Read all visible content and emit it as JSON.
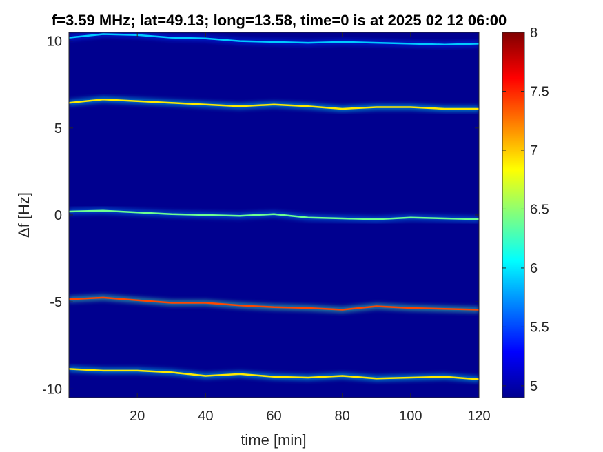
{
  "chart_data": {
    "type": "heatmap",
    "title": "f=3.59 MHz;  lat=49.13; long=13.58, time=0 is at 2025 02 12 06:00",
    "xlabel": "time [min]",
    "ylabel": "Δf [Hz]",
    "xlim": [
      0,
      120
    ],
    "ylim": [
      -10.5,
      10.5
    ],
    "xticks": [
      20,
      40,
      60,
      80,
      100,
      120
    ],
    "xtick_labels": [
      "20",
      "40",
      "60",
      "80",
      "100",
      "120"
    ],
    "yticks": [
      -10,
      -5,
      0,
      5,
      10
    ],
    "ytick_labels": [
      "-10",
      "-5",
      "0",
      "5",
      "10"
    ],
    "colorbar": {
      "colormap": "jet",
      "range": [
        4.9,
        8.0
      ],
      "ticks": [
        5,
        5.5,
        6,
        6.5,
        7,
        7.5,
        8
      ],
      "tick_labels": [
        "5",
        "5.5",
        "6",
        "6.5",
        "7",
        "7.5",
        "8"
      ]
    },
    "background_color": "#00008f",
    "traces": [
      {
        "time": [
          0,
          10,
          20,
          30,
          40,
          50,
          60,
          70,
          80,
          90,
          100,
          110,
          120
        ],
        "freq": [
          10.2,
          10.4,
          10.35,
          10.2,
          10.15,
          10.0,
          9.95,
          9.9,
          9.95,
          9.9,
          9.85,
          9.8,
          9.85
        ],
        "intensity": 5.9
      },
      {
        "time": [
          0,
          10,
          20,
          30,
          40,
          50,
          60,
          70,
          80,
          90,
          100,
          110,
          120
        ],
        "freq": [
          6.45,
          6.65,
          6.55,
          6.45,
          6.35,
          6.25,
          6.35,
          6.25,
          6.1,
          6.2,
          6.2,
          6.1,
          6.1
        ],
        "intensity": 6.9
      },
      {
        "time": [
          0,
          10,
          20,
          30,
          40,
          50,
          60,
          70,
          80,
          90,
          100,
          110,
          120
        ],
        "freq": [
          0.2,
          0.25,
          0.15,
          0.05,
          0.0,
          -0.05,
          0.05,
          -0.15,
          -0.2,
          -0.25,
          -0.15,
          -0.2,
          -0.25
        ],
        "intensity": 6.4
      },
      {
        "time": [
          0,
          10,
          20,
          30,
          40,
          50,
          60,
          70,
          80,
          90,
          100,
          110,
          120
        ],
        "freq": [
          -4.85,
          -4.75,
          -4.9,
          -5.05,
          -5.05,
          -5.2,
          -5.3,
          -5.35,
          -5.45,
          -5.25,
          -5.35,
          -5.4,
          -5.45
        ],
        "intensity": 7.4
      },
      {
        "time": [
          0,
          10,
          20,
          30,
          40,
          50,
          60,
          70,
          80,
          90,
          100,
          110,
          120
        ],
        "freq": [
          -8.85,
          -8.95,
          -8.95,
          -9.05,
          -9.25,
          -9.15,
          -9.3,
          -9.35,
          -9.25,
          -9.4,
          -9.35,
          -9.3,
          -9.45
        ],
        "intensity": 6.9
      }
    ]
  }
}
